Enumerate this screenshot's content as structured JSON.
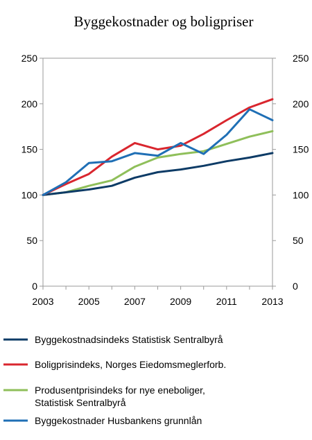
{
  "chart_data": {
    "type": "line",
    "title": "Byggekostnader og boligpriser",
    "xlabel": "",
    "ylabel": "",
    "x": [
      2003,
      2004,
      2005,
      2006,
      2007,
      2008,
      2009,
      2010,
      2011,
      2012,
      2013
    ],
    "x_tick_labels": [
      "2003",
      "2005",
      "2007",
      "2009",
      "2011",
      "2013"
    ],
    "xlim": [
      2003,
      2013
    ],
    "ylim": [
      0,
      250
    ],
    "y_ticks": [
      0,
      50,
      100,
      150,
      200,
      250
    ],
    "right_axis_mirror": true,
    "grid": false,
    "legend_position": "bottom",
    "series": [
      {
        "name": "Byggekostnadsindeks Statistisk Sentralbyrå",
        "color": "#0d3b66",
        "values": [
          100,
          103,
          106,
          110,
          119,
          125,
          128,
          132,
          137,
          141,
          146
        ]
      },
      {
        "name": "Boligprisindeks, Norges Eiedomsmeglerforb.",
        "color": "#d9262e",
        "values": [
          100,
          112,
          123,
          142,
          157,
          150,
          154,
          167,
          182,
          196,
          205
        ]
      },
      {
        "name": "Produsentprisindeks for nye eneboliger,",
        "name_line2": "Statistisk Sentralbyrå",
        "color": "#8fbf5a",
        "values": [
          100,
          103,
          110,
          116,
          131,
          141,
          145,
          148,
          156,
          164,
          170
        ]
      },
      {
        "name": "Byggekostnader Husbankens grunnlån",
        "color": "#1f6fb5",
        "values": [
          100,
          114,
          135,
          137,
          146,
          143,
          157,
          145,
          166,
          194,
          182
        ]
      }
    ]
  }
}
